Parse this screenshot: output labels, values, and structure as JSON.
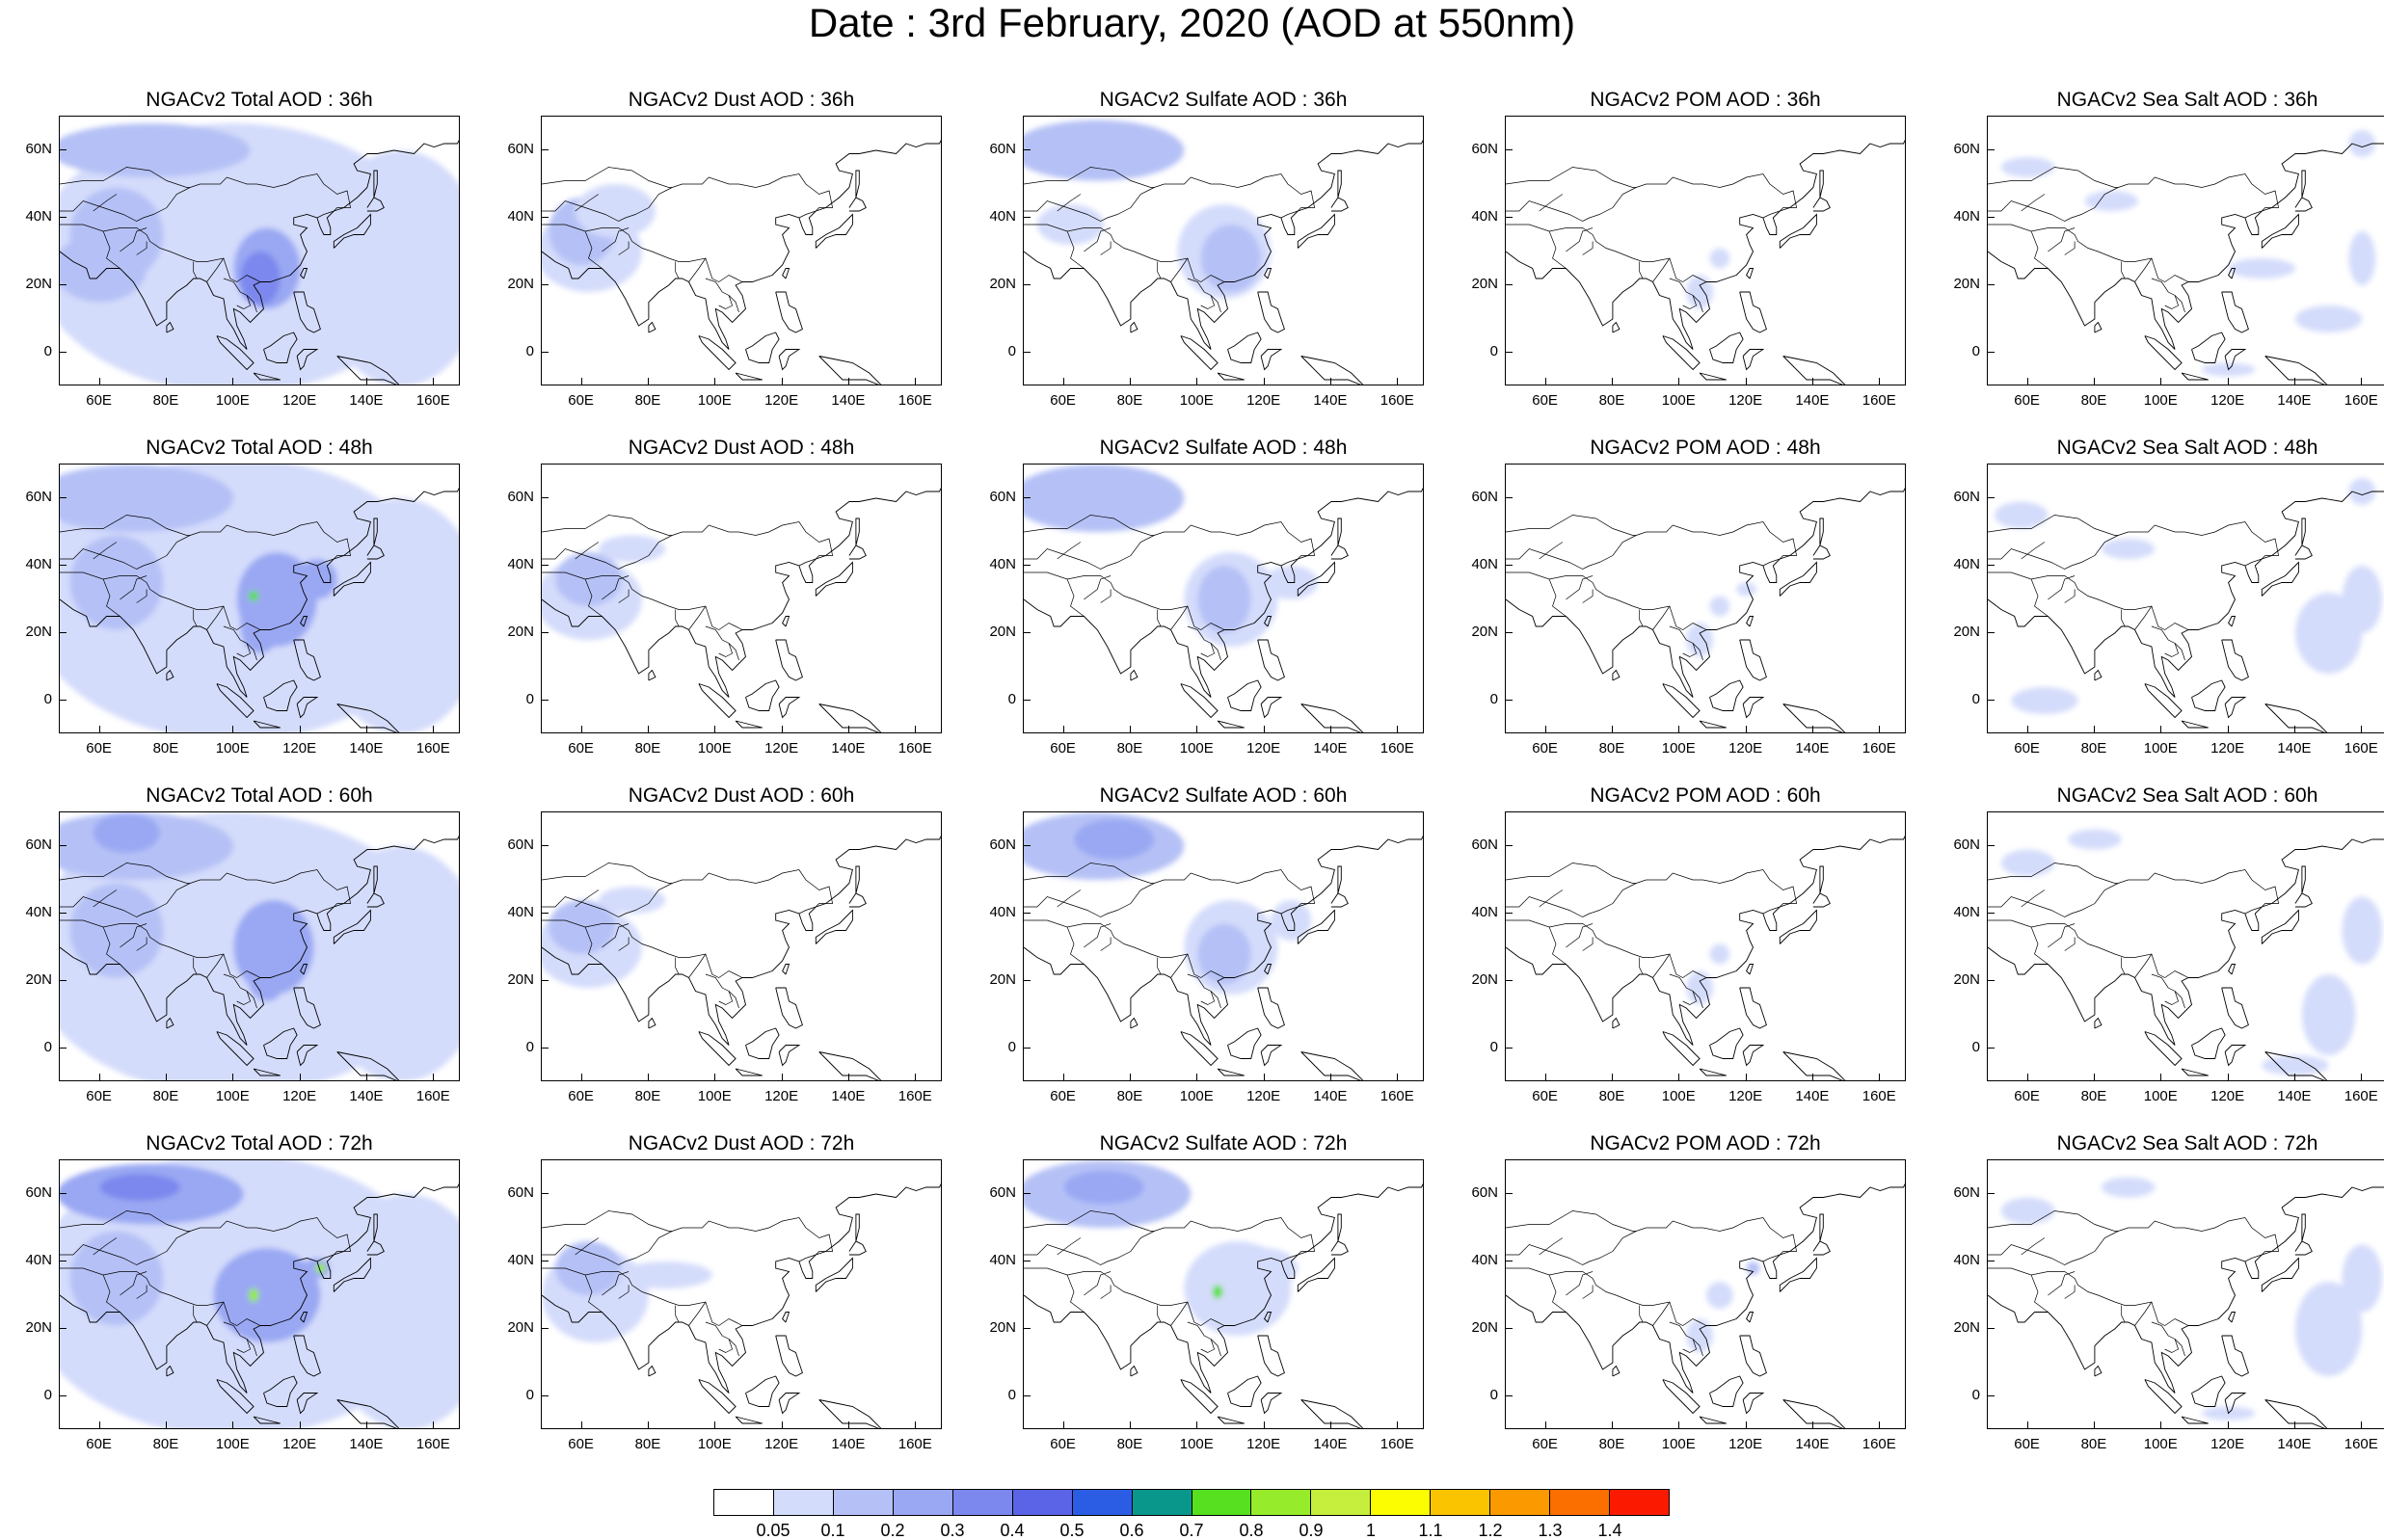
{
  "title": "Date : 3rd February, 2020 (AOD at 550nm)",
  "lon_ticks": [
    "60E",
    "80E",
    "100E",
    "120E",
    "140E",
    "160E"
  ],
  "lat_ticks": [
    "60N",
    "40N",
    "20N",
    "0"
  ],
  "map_extent": {
    "lon": [
      48,
      168
    ],
    "lat": [
      -10,
      70
    ]
  },
  "colorbar": {
    "labels": [
      "0.05",
      "0.1",
      "0.2",
      "0.3",
      "0.4",
      "0.5",
      "0.6",
      "0.7",
      "0.8",
      "0.9",
      "1",
      "1.1",
      "1.2",
      "1.3",
      "1.4"
    ],
    "colors": [
      "#ffffff",
      "#d4dcfb",
      "#b5c1f6",
      "#9aa8f3",
      "#7c88ee",
      "#5b63e6",
      "#2a5de4",
      "#09978c",
      "#56e020",
      "#96ec2a",
      "#c6ee3c",
      "#fbfd00",
      "#fbc400",
      "#fb9a00",
      "#fb6e00",
      "#fb1a00"
    ]
  },
  "panels": [
    {
      "title": "NGACv2 Total AOD : 36h",
      "variable": "total",
      "forecast_hour": "36h",
      "max_class": "0.4"
    },
    {
      "title": "NGACv2 Dust AOD : 36h",
      "variable": "dust",
      "forecast_hour": "36h",
      "max_class": "0.3"
    },
    {
      "title": "NGACv2 Sulfate AOD : 36h",
      "variable": "sulfate",
      "forecast_hour": "36h",
      "max_class": "0.3"
    },
    {
      "title": "NGACv2 POM AOD : 36h",
      "variable": "pom",
      "forecast_hour": "36h",
      "max_class": "0.2"
    },
    {
      "title": "NGACv2 Sea Salt AOD : 36h",
      "variable": "seasalt",
      "forecast_hour": "36h",
      "max_class": "0.1"
    },
    {
      "title": "NGACv2 Total AOD : 48h",
      "variable": "total",
      "forecast_hour": "48h",
      "max_class": "0.8"
    },
    {
      "title": "NGACv2 Dust AOD : 48h",
      "variable": "dust",
      "forecast_hour": "48h",
      "max_class": "0.2"
    },
    {
      "title": "NGACv2 Sulfate AOD : 48h",
      "variable": "sulfate",
      "forecast_hour": "48h",
      "max_class": "0.3"
    },
    {
      "title": "NGACv2 POM AOD : 48h",
      "variable": "pom",
      "forecast_hour": "48h",
      "max_class": "0.2"
    },
    {
      "title": "NGACv2 Sea Salt AOD : 48h",
      "variable": "seasalt",
      "forecast_hour": "48h",
      "max_class": "0.1"
    },
    {
      "title": "NGACv2 Total AOD : 60h",
      "variable": "total",
      "forecast_hour": "60h",
      "max_class": "0.4"
    },
    {
      "title": "NGACv2 Dust AOD : 60h",
      "variable": "dust",
      "forecast_hour": "60h",
      "max_class": "0.2"
    },
    {
      "title": "NGACv2 Sulfate AOD : 60h",
      "variable": "sulfate",
      "forecast_hour": "60h",
      "max_class": "0.3"
    },
    {
      "title": "NGACv2 POM AOD : 60h",
      "variable": "pom",
      "forecast_hour": "60h",
      "max_class": "0.2"
    },
    {
      "title": "NGACv2 Sea Salt AOD : 60h",
      "variable": "seasalt",
      "forecast_hour": "60h",
      "max_class": "0.1"
    },
    {
      "title": "NGACv2 Total AOD : 72h",
      "variable": "total",
      "forecast_hour": "72h",
      "max_class": "0.9"
    },
    {
      "title": "NGACv2 Dust AOD : 72h",
      "variable": "dust",
      "forecast_hour": "72h",
      "max_class": "0.2"
    },
    {
      "title": "NGACv2 Sulfate AOD : 72h",
      "variable": "sulfate",
      "forecast_hour": "72h",
      "max_class": "0.8"
    },
    {
      "title": "NGACv2 POM AOD : 72h",
      "variable": "pom",
      "forecast_hour": "72h",
      "max_class": "0.2"
    },
    {
      "title": "NGACv2 Sea Salt  AOD : 72h",
      "variable": "seasalt",
      "forecast_hour": "72h",
      "max_class": "0.1"
    }
  ]
}
